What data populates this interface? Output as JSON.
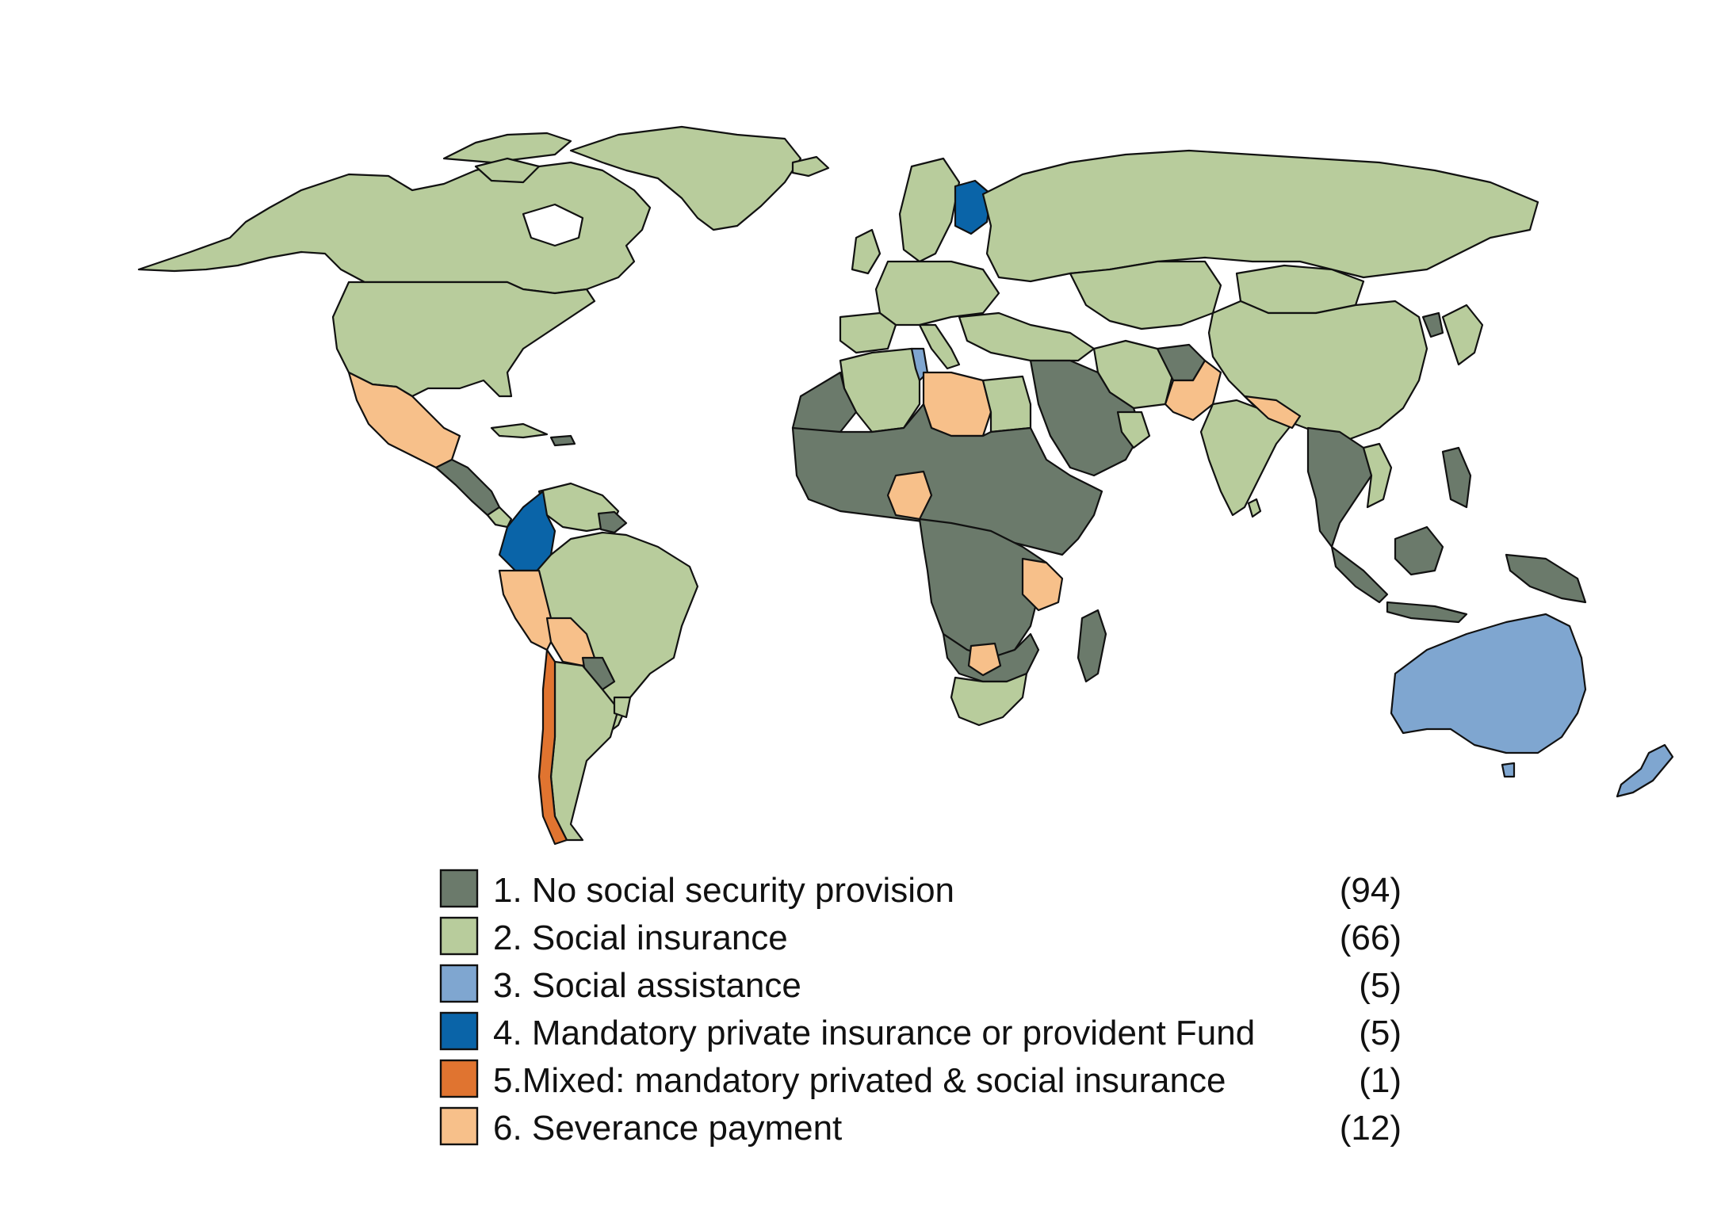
{
  "colors": {
    "none": "#6b7a6b",
    "social_insurance": "#b8cc9c",
    "social_assistance": "#7fa6d0",
    "mandatory_private": "#0a64a8",
    "mixed": "#e07430",
    "severance": "#f7c08a",
    "no_data": "#ffffff"
  },
  "legend": [
    {
      "label": "1. No social security provision",
      "count": "(94)",
      "color": "#6b7a6b"
    },
    {
      "label": "2. Social insurance",
      "count": "(66)",
      "color": "#b8cc9c"
    },
    {
      "label": "3. Social assistance",
      "count": "(5)",
      "color": "#7fa6d0"
    },
    {
      "label": "4. Mandatory private insurance or provident Fund",
      "count": "(5)",
      "color": "#0a64a8"
    },
    {
      "label": "5.Mixed: mandatory privated & social insurance",
      "count": "(1)",
      "color": "#e07430"
    },
    {
      "label": "6. Severance payment",
      "count": "(12)",
      "color": "#f7c08a"
    }
  ]
}
